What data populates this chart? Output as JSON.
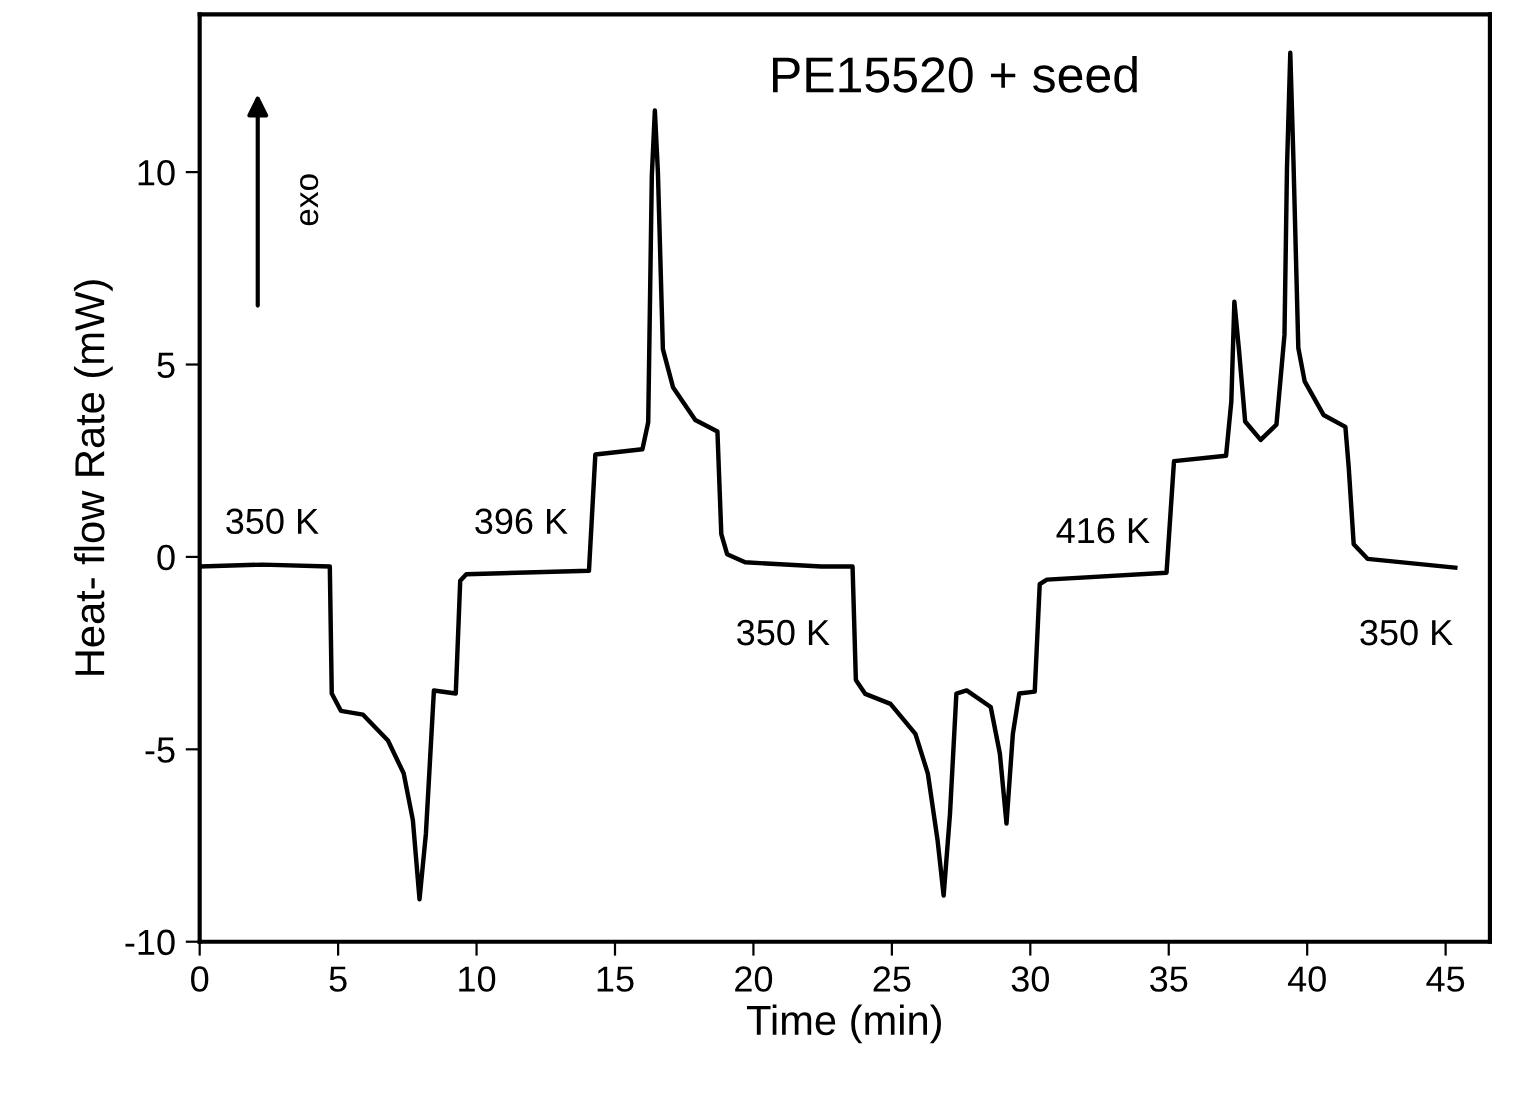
{
  "chart_data": {
    "type": "line",
    "title": "PE15520 + seed",
    "xlabel": "Time (min)",
    "ylabel": "Heat- flow Rate (mW)",
    "xlim": [
      0,
      46.6
    ],
    "xticks": [
      0,
      5,
      10,
      15,
      20,
      25,
      30,
      35,
      40,
      45
    ],
    "ylim": [
      -10,
      14.1
    ],
    "yticks": [
      -10,
      -5,
      0,
      5,
      10
    ],
    "grid": false,
    "legend": false,
    "marker": "none",
    "line_style": "solid",
    "series": [
      {
        "color": "#000000",
        "x": [
          0,
          2.27,
          4.7,
          4.77,
          5.1,
          5.9,
          6.8,
          7.37,
          7.7,
          7.94,
          8.17,
          8.46,
          9.25,
          9.41,
          9.63,
          14.06,
          14.29,
          15.99,
          16.2,
          16.33,
          16.44,
          16.55,
          16.73,
          17.1,
          17.9,
          18.7,
          18.84,
          19.05,
          19.7,
          22.45,
          23.58,
          23.7,
          24.04,
          24.95,
          25.85,
          26.3,
          26.65,
          26.87,
          27.1,
          27.33,
          27.7,
          28.57,
          28.9,
          29.14,
          29.37,
          29.6,
          30.16,
          30.34,
          30.6,
          34.92,
          35.19,
          37.07,
          37.26,
          37.37,
          37.53,
          37.76,
          38.32,
          38.89,
          39.18,
          39.27,
          39.39,
          39.5,
          39.68,
          39.91,
          40.59,
          41.38,
          41.5,
          41.68,
          42.18,
          45.35
        ],
        "values": [
          -0.25,
          -0.2,
          -0.25,
          -3.55,
          -4.0,
          -4.1,
          -4.77,
          -5.63,
          -6.84,
          -8.9,
          -7.2,
          -3.47,
          -3.55,
          -0.62,
          -0.45,
          -0.36,
          2.66,
          2.8,
          3.5,
          9.9,
          11.6,
          10.0,
          5.4,
          4.4,
          3.56,
          3.26,
          0.59,
          0.07,
          -0.14,
          -0.25,
          -0.25,
          -3.2,
          -3.56,
          -3.82,
          -4.6,
          -5.63,
          -7.36,
          -8.8,
          -6.67,
          -3.55,
          -3.47,
          -3.9,
          -5.11,
          -6.93,
          -4.6,
          -3.55,
          -3.5,
          -0.71,
          -0.59,
          -0.41,
          2.49,
          2.63,
          4.04,
          6.63,
          5.43,
          3.52,
          3.04,
          3.44,
          5.77,
          10.1,
          13.1,
          10.4,
          5.43,
          4.56,
          3.69,
          3.38,
          2.33,
          0.33,
          -0.05,
          -0.28
        ]
      }
    ],
    "annotations": [
      "exo",
      "350 K",
      "396 K",
      "350 K",
      "416 K",
      "350 K"
    ]
  }
}
